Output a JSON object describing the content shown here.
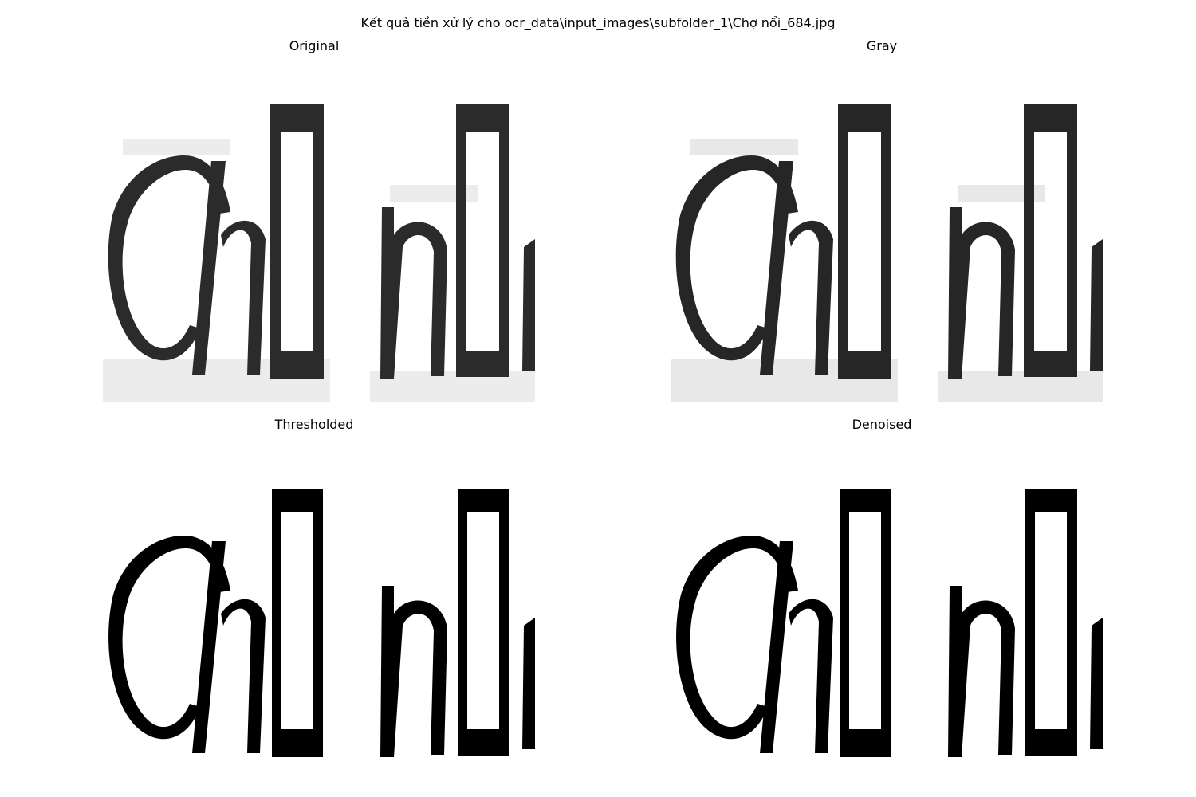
{
  "figure": {
    "suptitle": "Kết quả tiền xử lý cho ocr_data\\input_images\\subfolder_1\\Chợ nổi_684.jpg"
  },
  "panels": [
    {
      "title": "Original",
      "image_text": "Chợ nổi",
      "style": "soft"
    },
    {
      "title": "Gray",
      "image_text": "Chợ nổi",
      "style": "soft-gray"
    },
    {
      "title": "Thresholded",
      "image_text": "Chợ nổi",
      "style": "binary"
    },
    {
      "title": "Denoised",
      "image_text": "Chợ nổi",
      "style": "binary"
    }
  ],
  "colors": {
    "background": "#ffffff",
    "ink": "#000000",
    "soft_ink": "#2b2b2b",
    "gray_ink": "#262626",
    "noise": "#e8e8e8"
  }
}
